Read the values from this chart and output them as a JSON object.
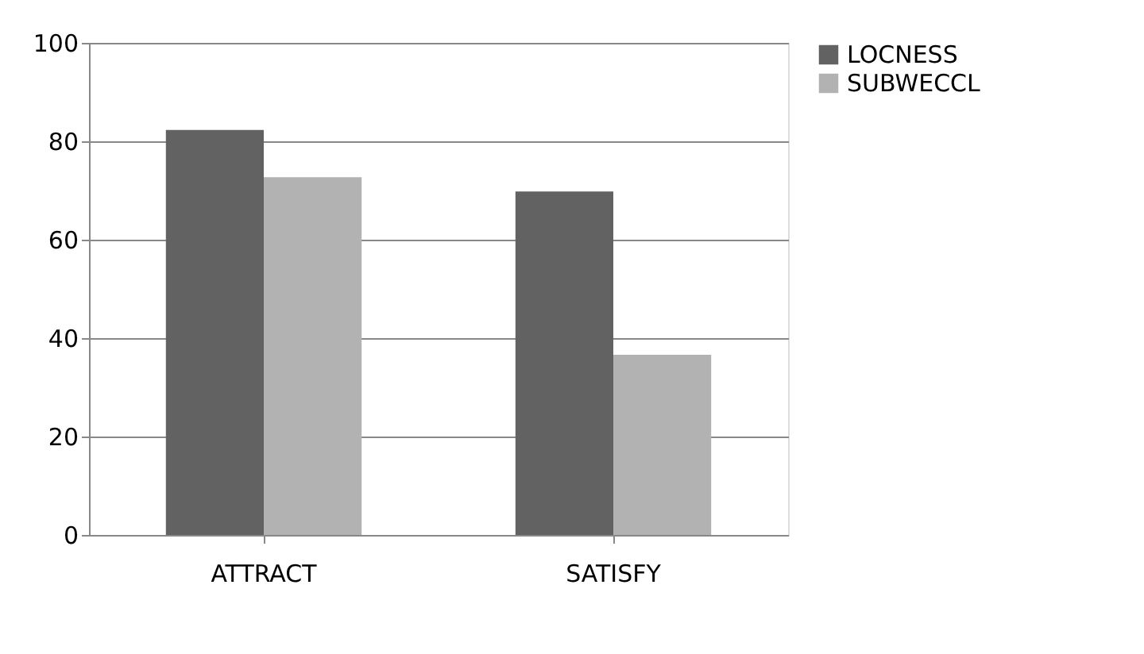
{
  "chart_data": {
    "type": "bar",
    "categories": [
      "ATTRACT",
      "SATISFY"
    ],
    "series": [
      {
        "name": "LOCNESS",
        "color": "#626262",
        "values": [
          82.3,
          69.8
        ]
      },
      {
        "name": "SUBWECCL",
        "color": "#b2b2b2",
        "values": [
          72.7,
          36.6
        ]
      }
    ],
    "ylim": [
      0,
      100
    ],
    "yticks": [
      0,
      20,
      40,
      60,
      80,
      100
    ],
    "grid": "y",
    "legend": "right"
  }
}
